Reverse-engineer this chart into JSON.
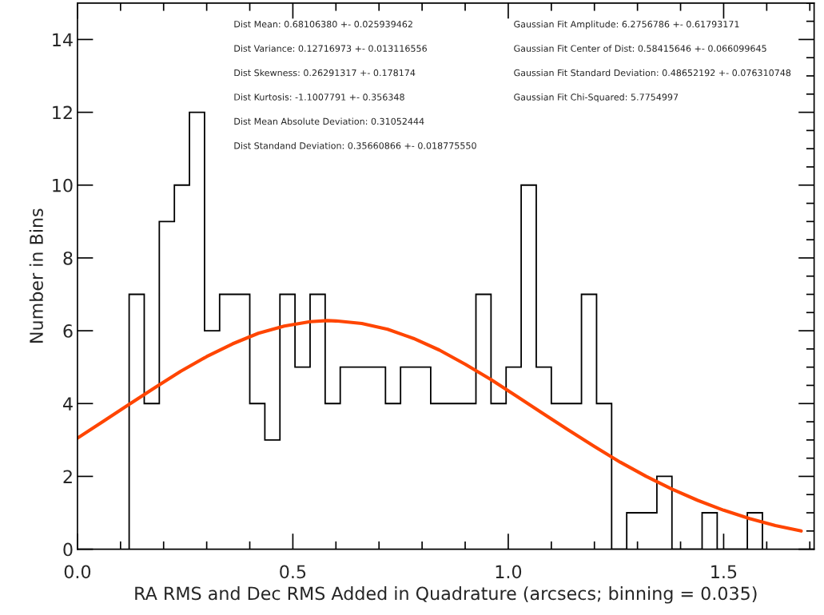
{
  "chart_data": {
    "type": "histogram",
    "xlabel": "RA RMS and Dec RMS Added in Quadrature (arcsecs; binning = 0.035)",
    "ylabel": "Number in Bins",
    "xlim": [
      0,
      1.71
    ],
    "ylim": [
      0,
      15
    ],
    "xticks": [
      {
        "value": 0,
        "label": "0.0"
      },
      {
        "value": 0.5,
        "label": "0.5"
      },
      {
        "value": 1,
        "label": "1.0"
      },
      {
        "value": 1.5,
        "label": "1.5"
      }
    ],
    "yticks": [
      0,
      2,
      4,
      6,
      8,
      10,
      12,
      14
    ],
    "grid": false,
    "series": [
      {
        "color": "#000000",
        "bins": [
          0.12,
          0.155,
          0.19,
          0.225,
          0.26,
          0.295,
          0.33,
          0.365,
          0.4,
          0.435,
          0.47,
          0.505,
          0.54,
          0.575,
          0.61,
          0.645,
          0.68,
          0.715,
          0.75,
          0.785,
          0.82,
          0.855,
          0.89,
          0.925,
          0.96,
          0.995,
          1.03,
          1.065,
          1.1,
          1.135,
          1.17,
          1.205,
          1.24,
          1.275,
          1.31,
          1.345,
          1.38,
          1.415,
          1.45,
          1.485,
          1.52,
          1.555,
          1.59
        ],
        "values": [
          7,
          4,
          9,
          10,
          12,
          6,
          7,
          7,
          4,
          3,
          7,
          5,
          7,
          4,
          5,
          5,
          5,
          4,
          5,
          5,
          4,
          4,
          4,
          7,
          4,
          5,
          10,
          5,
          4,
          4,
          7,
          4,
          0,
          1,
          1,
          2,
          0,
          0,
          1,
          0,
          0,
          1
        ]
      },
      {
        "type": "line",
        "color": "#ff4500",
        "x": [
          0,
          0.06,
          0.12,
          0.18,
          0.24,
          0.3,
          0.36,
          0.42,
          0.48,
          0.54,
          0.58,
          0.6,
          0.66,
          0.72,
          0.78,
          0.84,
          0.9,
          0.96,
          1.02,
          1.08,
          1.14,
          1.2,
          1.26,
          1.32,
          1.38,
          1.44,
          1.5,
          1.56,
          1.62,
          1.68
        ],
        "values": [
          3.05,
          3.51,
          3.98,
          4.44,
          4.89,
          5.29,
          5.64,
          5.93,
          6.13,
          6.25,
          6.28,
          6.27,
          6.2,
          6.04,
          5.79,
          5.47,
          5.08,
          4.66,
          4.2,
          3.73,
          3.27,
          2.82,
          2.39,
          2.0,
          1.65,
          1.34,
          1.07,
          0.84,
          0.65,
          0.5
        ]
      }
    ],
    "annotations": [
      "Dist Mean: 0.68106380 +- 0.025939462",
      "Dist Variance: 0.12716973 +- 0.013116556",
      "Dist Skewness: 0.26291317 +- 0.178174",
      "Dist Kurtosis: -1.1007791 +- 0.356348",
      "Dist Mean Absolute Deviation: 0.31052444",
      "Dist Standand Deviation: 0.35660866 +- 0.018775550",
      "Gaussian Fit Amplitude: 6.2756786 +- 0.61793171",
      "Gaussian Fit Center of Dist: 0.58415646 +- 0.066099645",
      "Gaussian Fit Standard Deviation: 0.48652192 +- 0.076310748",
      "Gaussian Fit Chi-Squared: 5.7754997"
    ]
  }
}
